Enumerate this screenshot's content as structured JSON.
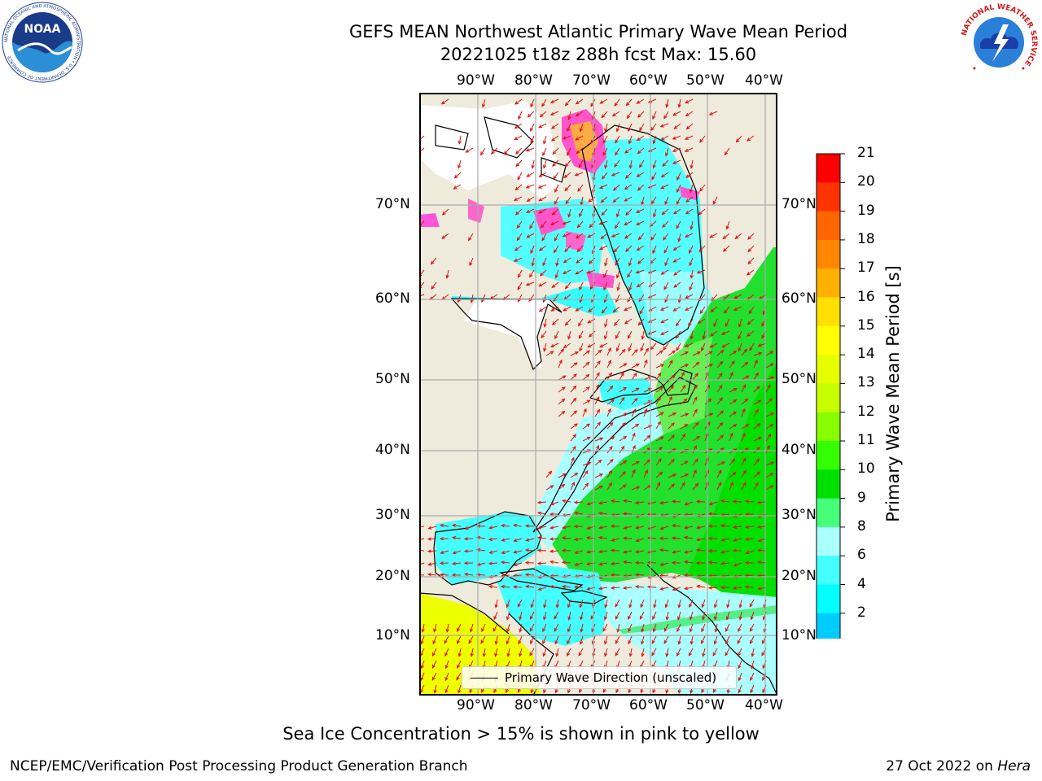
{
  "title": {
    "line1": "GEFS MEAN Northwest Atlantic Primary Wave Mean Period",
    "line2": "20221025 t18z 288h fcst   Max: 15.60"
  },
  "map": {
    "lon_ticks_top": [
      "90°W",
      "80°W",
      "70°W",
      "60°W",
      "50°W",
      "40°W"
    ],
    "lon_ticks_bottom": [
      "90°W",
      "80°W",
      "70°W",
      "60°W",
      "50°W",
      "40°W"
    ],
    "lat_ticks_left": [
      "70°N",
      "60°N",
      "50°N",
      "40°N",
      "30°N",
      "20°N",
      "10°N"
    ],
    "lat_ticks_right": [
      "70°N",
      "60°N",
      "50°N",
      "40°N",
      "30°N",
      "20°N",
      "10°N"
    ],
    "land_color": "#efebdc",
    "legend_label": "Primary Wave Direction (unscaled)",
    "arrow_color": "#dd1111"
  },
  "colorbar": {
    "label": "Primary Wave Mean Period [s]",
    "ticks": [
      "21",
      "20",
      "19",
      "18",
      "17",
      "16",
      "15",
      "14",
      "13",
      "12",
      "11",
      "10",
      "9",
      "8",
      "6",
      "4",
      "2"
    ],
    "colors": [
      "#ff0000",
      "#ff3300",
      "#ff6600",
      "#ff8800",
      "#ffb000",
      "#ffe000",
      "#ffff00",
      "#e6ff00",
      "#c8ff00",
      "#88ff00",
      "#33ff00",
      "#00e000",
      "#44ff77",
      "#aaffff",
      "#44ffff",
      "#00ffff",
      "#00ccff",
      "#0077ff"
    ],
    "under_color": "#0000ff"
  },
  "notes": {
    "ice": "Sea Ice Concentration > 15% is shown in pink to yellow"
  },
  "footer": {
    "left": "NCEP/EMC/Verification Post Processing Product Generation Branch",
    "right_date": "27 Oct 2022 on ",
    "right_host": "Hera"
  },
  "logos": {
    "noaa_text": "NOAA",
    "noaa_ring_text": "NATIONAL OCEANIC AND ATMOSPHERIC ADMINISTRATION • U.S. DEPARTMENT OF COMMERCE",
    "nws_ring_text": "NATIONAL WEATHER SERVICE"
  }
}
